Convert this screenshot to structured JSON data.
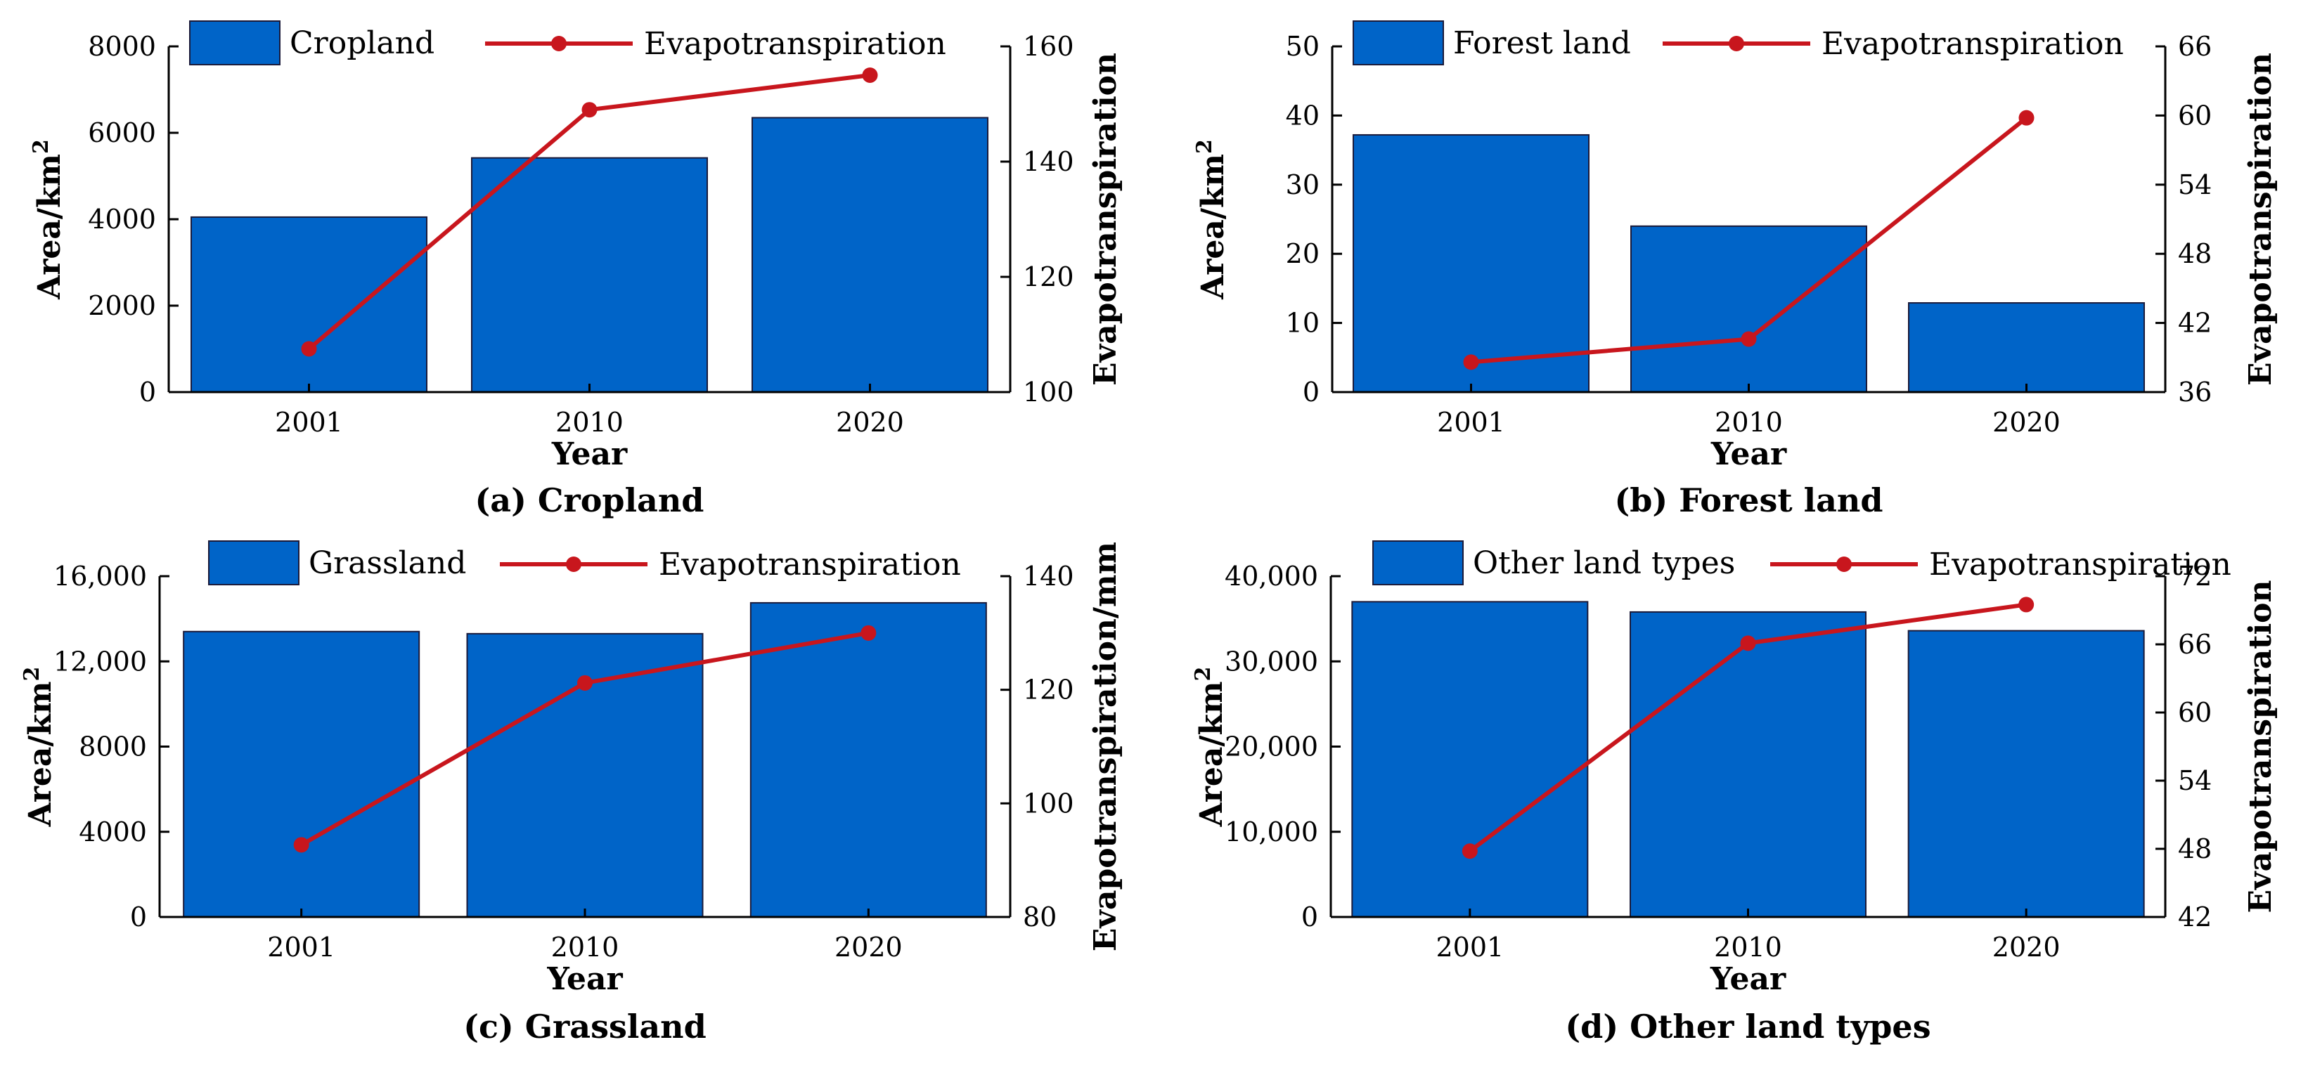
{
  "figure": {
    "colors": {
      "bar": "#0064C8",
      "bar_edge": "#1a1a3a",
      "line": "#C8161D",
      "axis": "#000000",
      "background": "#ffffff"
    }
  },
  "chart_data": [
    {
      "type": "bar",
      "panel": "a",
      "caption": "(a) Cropland",
      "categories": [
        "2001",
        "2010",
        "2020"
      ],
      "xlabel": "Year",
      "ylabel": "Area/km",
      "ylabel_superscript": "2",
      "y2label": "Evapotranspiration",
      "ylim": [
        0,
        8000
      ],
      "y2lim": [
        100,
        160
      ],
      "yticks": [
        "0",
        "2000",
        "4000",
        "6000",
        "8000"
      ],
      "y2ticks": [
        "100",
        "120",
        "140",
        "160"
      ],
      "series": [
        {
          "name": "Cropland",
          "kind": "bar",
          "axis": "left",
          "values": [
            4050,
            5420,
            6350
          ]
        },
        {
          "name": "Evapotranspiration",
          "kind": "line",
          "axis": "right",
          "values": [
            107.5,
            149.0,
            155.0
          ]
        }
      ]
    },
    {
      "type": "bar",
      "panel": "b",
      "caption": "(b) Forest land",
      "categories": [
        "2001",
        "2010",
        "2020"
      ],
      "xlabel": "Year",
      "ylabel": "Area/km",
      "ylabel_superscript": "2",
      "y2label": "Evapotranspiration",
      "ylim": [
        0,
        50
      ],
      "y2lim": [
        36,
        66
      ],
      "yticks": [
        "0",
        "10",
        "20",
        "30",
        "40",
        "50"
      ],
      "y2ticks": [
        "36",
        "42",
        "48",
        "54",
        "60",
        "66"
      ],
      "series": [
        {
          "name": "Forest land",
          "kind": "bar",
          "axis": "left",
          "values": [
            37.2,
            24.0,
            12.9
          ]
        },
        {
          "name": "Evapotranspiration",
          "kind": "line",
          "axis": "right",
          "values": [
            38.6,
            40.6,
            59.8
          ]
        }
      ]
    },
    {
      "type": "bar",
      "panel": "c",
      "caption": "(c) Grassland",
      "categories": [
        "2001",
        "2010",
        "2020"
      ],
      "xlabel": "Year",
      "ylabel": "Area/km",
      "ylabel_superscript": "2",
      "y2label": "Evapotranspiration/mm",
      "ylim": [
        0,
        16000
      ],
      "y2lim": [
        80,
        140
      ],
      "yticks": [
        "0",
        "4000",
        "8000",
        "12,000",
        "16,000"
      ],
      "y2ticks": [
        "80",
        "100",
        "120",
        "140"
      ],
      "series": [
        {
          "name": "Grassland",
          "kind": "bar",
          "axis": "left",
          "values": [
            13400,
            13300,
            14750
          ]
        },
        {
          "name": "Evapotranspiration",
          "kind": "line",
          "axis": "right",
          "values": [
            92.7,
            121.2,
            130.0
          ]
        }
      ]
    },
    {
      "type": "bar",
      "panel": "d",
      "caption": "(d) Other land types",
      "categories": [
        "2001",
        "2010",
        "2020"
      ],
      "xlabel": "Year",
      "ylabel": "Area/km",
      "ylabel_superscript": "2",
      "y2label": "Evapotranspiration",
      "ylim": [
        0,
        40000
      ],
      "y2lim": [
        42,
        72
      ],
      "yticks": [
        "0",
        "10,000",
        "20,000",
        "30,000",
        "40,000"
      ],
      "y2ticks": [
        "42",
        "48",
        "54",
        "60",
        "66",
        "72"
      ],
      "series": [
        {
          "name": "Other land types",
          "kind": "bar",
          "axis": "left",
          "values": [
            37000,
            35800,
            33600
          ]
        },
        {
          "name": "Evapotranspiration",
          "kind": "line",
          "axis": "right",
          "values": [
            47.8,
            66.1,
            69.5
          ]
        }
      ]
    }
  ]
}
